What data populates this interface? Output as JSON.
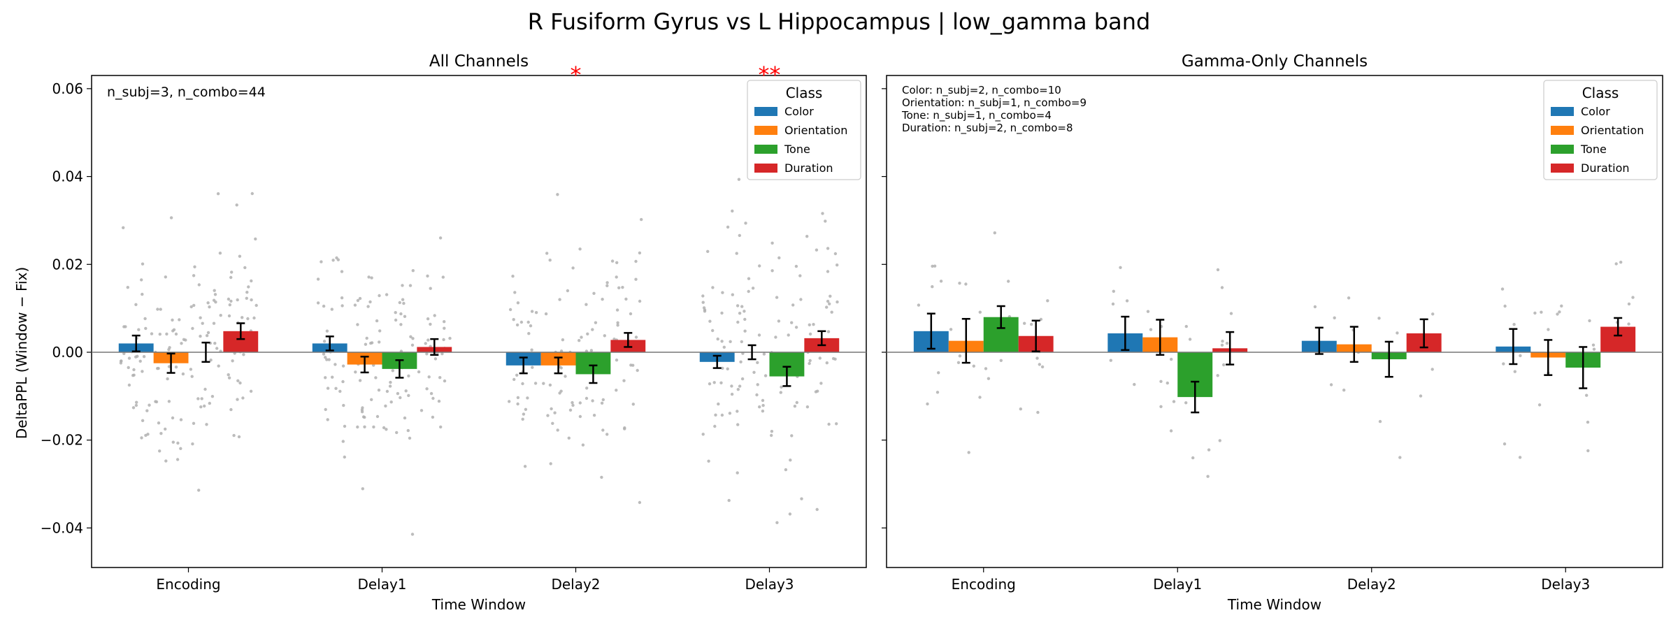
{
  "figure": {
    "title": "R Fusiform Gyrus vs L Hippocampus  |  low_gamma band",
    "ylabel": "DeltaPPL (Window − Fix)",
    "xlabel": "Time Window"
  },
  "colors": {
    "Color": "#1f77b4",
    "Orientation": "#ff7f0e",
    "Tone": "#2ca02c",
    "Duration": "#d62728",
    "points": "#b0b0b0",
    "significance": "#ff0000"
  },
  "chart_data": [
    {
      "type": "bar",
      "title": "All Channels",
      "xlabel": "Time Window",
      "ylabel": "DeltaPPL (Window − Fix)",
      "categories": [
        "Encoding",
        "Delay1",
        "Delay2",
        "Delay3"
      ],
      "ylim": [
        -0.049,
        0.063
      ],
      "yticks": [
        -0.04,
        -0.02,
        0.0,
        0.02,
        0.04,
        0.06
      ],
      "ytick_labels": [
        "−0.04",
        "−0.02",
        "0.00",
        "0.02",
        "0.04",
        "0.06"
      ],
      "legend": {
        "title": "Class",
        "placement": "upper right"
      },
      "annotation": "n_subj=3, n_combo=44",
      "significance": [
        {
          "category": "Delay2",
          "text": "*"
        },
        {
          "category": "Delay3",
          "text": "**"
        }
      ],
      "series": [
        {
          "name": "Color",
          "values": [
            0.002,
            0.002,
            -0.003,
            -0.0022
          ],
          "errors": [
            0.0018,
            0.0016,
            0.0018,
            0.0014
          ]
        },
        {
          "name": "Orientation",
          "values": [
            -0.0025,
            -0.0028,
            -0.003,
            0.0
          ],
          "errors": [
            0.0022,
            0.0018,
            0.0018,
            0.0016
          ]
        },
        {
          "name": "Tone",
          "values": [
            0.0,
            -0.0038,
            -0.005,
            -0.0055
          ],
          "errors": [
            0.0022,
            0.002,
            0.002,
            0.0022
          ]
        },
        {
          "name": "Duration",
          "values": [
            0.0048,
            0.0012,
            0.0028,
            0.0032
          ],
          "errors": [
            0.0018,
            0.0018,
            0.0016,
            0.0016
          ]
        }
      ]
    },
    {
      "type": "bar",
      "title": "Gamma-Only Channels",
      "xlabel": "Time Window",
      "categories": [
        "Encoding",
        "Delay1",
        "Delay2",
        "Delay3"
      ],
      "ylim": [
        -0.049,
        0.063
      ],
      "legend": {
        "title": "Class",
        "placement": "upper right"
      },
      "annotation_lines": [
        "Color: n_subj=2, n_combo=10",
        "Orientation: n_subj=1, n_combo=9",
        "Tone: n_subj=1, n_combo=4",
        "Duration: n_subj=2, n_combo=8"
      ],
      "series": [
        {
          "name": "Color",
          "values": [
            0.0048,
            0.0043,
            0.0026,
            0.0013
          ],
          "errors": [
            0.004,
            0.0038,
            0.003,
            0.004
          ]
        },
        {
          "name": "Orientation",
          "values": [
            0.0026,
            0.0034,
            0.0018,
            -0.0012
          ],
          "errors": [
            0.005,
            0.004,
            0.004,
            0.004
          ]
        },
        {
          "name": "Tone",
          "values": [
            0.008,
            -0.0102,
            -0.0016,
            -0.0035
          ],
          "errors": [
            0.0025,
            0.0035,
            0.004,
            0.0047
          ]
        },
        {
          "name": "Duration",
          "values": [
            0.0037,
            0.0009,
            0.0043,
            0.0058
          ],
          "errors": [
            0.0035,
            0.0037,
            0.0032,
            0.002
          ]
        }
      ]
    }
  ]
}
